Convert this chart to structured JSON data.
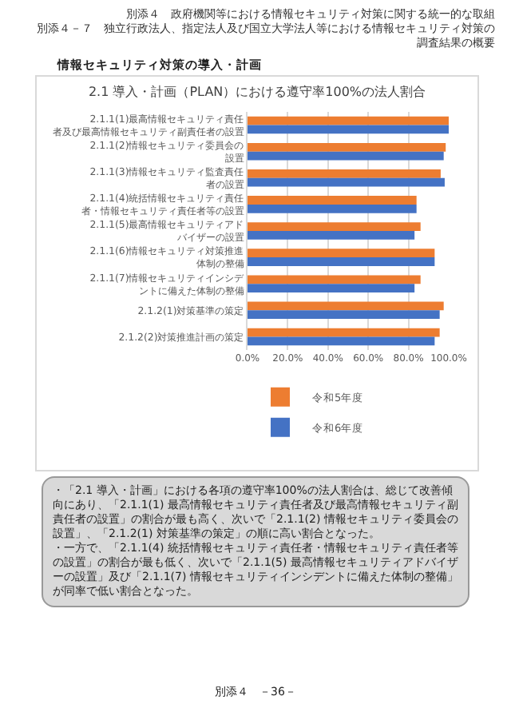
{
  "chart_data": {
    "type": "bar",
    "orientation": "horizontal",
    "title": "2.1 導入・計画（PLAN）における遵守率100%の法人割合",
    "categories": [
      "2.1.1(1)最高情報セキュリティ責任者及び最高情報セキュリティ副責任者の設置",
      "2.1.1(2)情報セキュリティ委員会の設置",
      "2.1.1(3)情報セキュリティ監査責任者の設置",
      "2.1.1(4)統括情報セキュリティ責任者・情報セキュリティ責任者等の設置",
      "2.1.1(5)最高情報セキュリティアドバイザーの設置",
      "2.1.1(6)情報セキュリティ対策推進体制の整備",
      "2.1.1(7)情報セキュリティインシデントに備えた体制の整備",
      "2.1.2(1)対策基準の策定",
      "2.1.2(2)対策推進計画の策定"
    ],
    "series": [
      {
        "name": "令和5年度",
        "color": "#ed7d31",
        "values": [
          100,
          98.5,
          96,
          84,
          86,
          93,
          86,
          97.5,
          95.5
        ]
      },
      {
        "name": "令和6年度",
        "color": "#4472c4",
        "values": [
          100,
          97.5,
          98,
          84,
          83,
          93,
          83,
          95.5,
          93
        ]
      }
    ],
    "xlim": [
      0,
      100
    ],
    "xticks": [
      {
        "value": 0,
        "label": "0.0%"
      },
      {
        "value": 20,
        "label": "20.0%"
      },
      {
        "value": 40,
        "label": "40.0%"
      },
      {
        "value": 60,
        "label": "60.0%"
      },
      {
        "value": 80,
        "label": "80.0%"
      },
      {
        "value": 100,
        "label": "100.0%"
      }
    ],
    "grid": "x",
    "legend": "bottom",
    "annotations": [
      "別添４　政府機関等における情報セキュリティ対策に関する統一的な取組",
      "別添４－７　独立行政法人、指定法人及び国立大学法人等における情報セキュリティ対策の調査結果の概要",
      "情報セキュリティ対策の導入・計画",
      "・「2.1 導入・計画」における各項の遵守率100%の法人割合は、総じて改善傾向にあり、「2.1.1(1) 最高情報セキュリティ責任者及び最高情報セキュリティ副責任者の設置」の割合が最も高く、次いで「2.1.1(2) 情報セキュリティ委員会の設置」、「2.1.2(1) 対策基準の策定」の順に高い割合となった。",
      "・一方で、「2.1.1(4) 統括情報セキュリティ責任者・情報セキュリティ責任者等の設置」の割合が最も低く、次いで「2.1.1(5) 最高情報セキュリティアドバイザーの設置」及び「2.1.1(7) 情報セキュリティインシデントに備えた体制の整備」が同率で低い割合となった。",
      "別添４　－36－"
    ]
  }
}
